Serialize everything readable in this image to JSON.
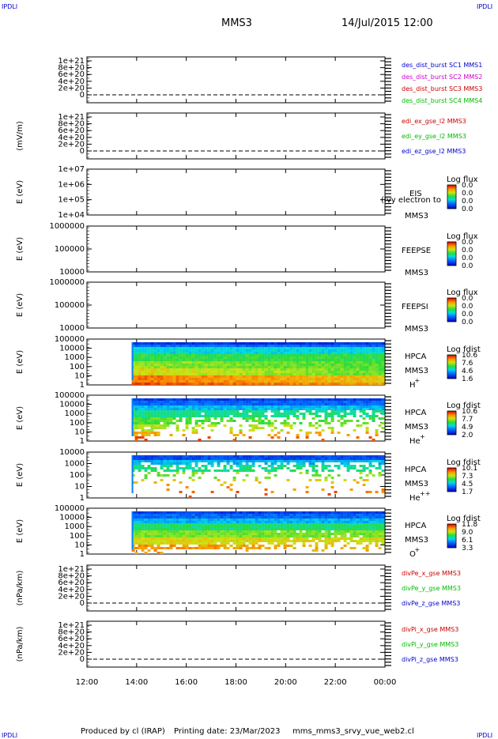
{
  "header": {
    "corner_left": "IPDLI",
    "corner_right": "IPDLI",
    "spacecraft": "MMS3",
    "datetime": "14/Jul/2015 12:00",
    "bottom_left": "IPDLI",
    "bottom_right": "IPDLI"
  },
  "footer": {
    "produced": "Produced by cl (IRAP)",
    "printing": "Printing date: 23/Mar/2023",
    "file": "mms_mms3_srvy_vue_web2.cl"
  },
  "colors": {
    "blue": "#0000cc",
    "magenta": "#cc00cc",
    "red": "#cc0000",
    "green": "#00bb00",
    "dashed": "#000000"
  },
  "chart_data": {
    "type": "heatmap",
    "x_tick_labels": [
      "12:00",
      "14:00",
      "16:00",
      "18:00",
      "20:00",
      "22:00",
      "00:00"
    ],
    "x_range_hours": [
      12,
      24
    ],
    "data_start_hour": 13.8,
    "panels": [
      {
        "kind": "line",
        "ylabel": "",
        "ticks": [
          "1e+21",
          "8e+20",
          "6e+20",
          "4e+20",
          "2e+20",
          "0"
        ],
        "legend": [
          {
            "text": "des_dist_burst SC1 MMS1",
            "color": "#0000cc"
          },
          {
            "text": "des_dist_burst SC2 MMS2",
            "color": "#cc00cc"
          },
          {
            "text": "des_dist_burst SC3 MMS3",
            "color": "#cc0000"
          },
          {
            "text": "des_dist_burst SC4 MMS4",
            "color": "#00bb00"
          }
        ]
      },
      {
        "kind": "line",
        "ylabel": "(mV/m)",
        "ticks": [
          "1e+21",
          "8e+20",
          "6e+20",
          "4e+20",
          "2e+20",
          "0"
        ],
        "legend": [
          {
            "text": "edi_ex_gse_l2 MMS3",
            "color": "#cc0000"
          },
          {
            "text": "edi_ey_gse_l2 MMS3",
            "color": "#00bb00"
          },
          {
            "text": "edi_ez_gse_l2 MMS3",
            "color": "#0000cc"
          }
        ]
      },
      {
        "kind": "spec",
        "ylabel": "E (eV)",
        "ticks": [
          "1e+07",
          "1e+06",
          "1e+05",
          "1e+04"
        ],
        "instrument": "EIS",
        "sc": "MMS3",
        "overlay": "(Ivy electron to",
        "cbar_title": "Log flux",
        "cbar_values": [
          "0.0",
          "0.0",
          "0.0",
          "0.0"
        ]
      },
      {
        "kind": "spec",
        "ylabel": "E (eV)",
        "ticks": [
          "1000000",
          "100000",
          "10000"
        ],
        "instrument": "FEEPSE",
        "sc": "MMS3",
        "cbar_title": "Log flux",
        "cbar_values": [
          "0.0",
          "0.0",
          "0.0",
          "0.0"
        ]
      },
      {
        "kind": "spec",
        "ylabel": "E (eV)",
        "ticks": [
          "1000000",
          "100000",
          "10000"
        ],
        "instrument": "FEEPSI",
        "sc": "MMS3",
        "cbar_title": "Log flux",
        "cbar_values": [
          "0.0",
          "0.0",
          "0.0",
          "0.0"
        ]
      },
      {
        "kind": "spec",
        "ylabel": "E (eV)",
        "ticks": [
          "100000",
          "10000",
          "1000",
          "100",
          "10",
          "1"
        ],
        "instrument": "HPCA",
        "sc": "MMS3",
        "species": "H",
        "species_sup": "+",
        "cbar_title": "Log fdist",
        "cbar_values": [
          "10.6",
          "7.6",
          "4.6",
          "1.6"
        ],
        "data": true,
        "profile": "h"
      },
      {
        "kind": "spec",
        "ylabel": "E (eV)",
        "ticks": [
          "100000",
          "10000",
          "1000",
          "100",
          "10",
          "1"
        ],
        "instrument": "HPCA",
        "sc": "MMS3",
        "species": "He",
        "species_sup": "+",
        "cbar_title": "Log fdist",
        "cbar_values": [
          "10.6",
          "7.7",
          "4.9",
          "2.0"
        ],
        "data": true,
        "profile": "he"
      },
      {
        "kind": "spec",
        "ylabel": "E (eV)",
        "ticks": [
          "10000",
          "1000",
          "100",
          "10",
          "1"
        ],
        "instrument": "HPCA",
        "sc": "MMS3",
        "species": "He",
        "species_sup": "++",
        "cbar_title": "Log fdist",
        "cbar_values": [
          "10.1",
          "7.3",
          "4.5",
          "1.7"
        ],
        "data": true,
        "profile": "hepp"
      },
      {
        "kind": "spec",
        "ylabel": "E (eV)",
        "ticks": [
          "100000",
          "10000",
          "1000",
          "100",
          "10",
          "1"
        ],
        "instrument": "HPCA",
        "sc": "MMS3",
        "species": "O",
        "species_sup": "+",
        "cbar_title": "Log fdist",
        "cbar_values": [
          "11.8",
          "9.0",
          "6.1",
          "3.3"
        ],
        "data": true,
        "profile": "o"
      },
      {
        "kind": "line",
        "ylabel": "(nPa/km)",
        "ticks": [
          "1e+21",
          "8e+20",
          "6e+20",
          "4e+20",
          "2e+20",
          "0"
        ],
        "legend": [
          {
            "text": "divPe_x_gse MMS3",
            "color": "#cc0000"
          },
          {
            "text": "divPe_y_gse MMS3",
            "color": "#00bb00"
          },
          {
            "text": "divPe_z_gse MMS3",
            "color": "#0000cc"
          }
        ]
      },
      {
        "kind": "line",
        "ylabel": "(nPa/km)",
        "ticks": [
          "1e+21",
          "8e+20",
          "6e+20",
          "4e+20",
          "2e+20",
          "0"
        ],
        "legend": [
          {
            "text": "divPi_x_gse MMS3",
            "color": "#cc0000"
          },
          {
            "text": "divPi_y_gse MMS3",
            "color": "#00bb00"
          },
          {
            "text": "divPi_z_gse MMS3",
            "color": "#0000cc"
          }
        ]
      }
    ]
  }
}
